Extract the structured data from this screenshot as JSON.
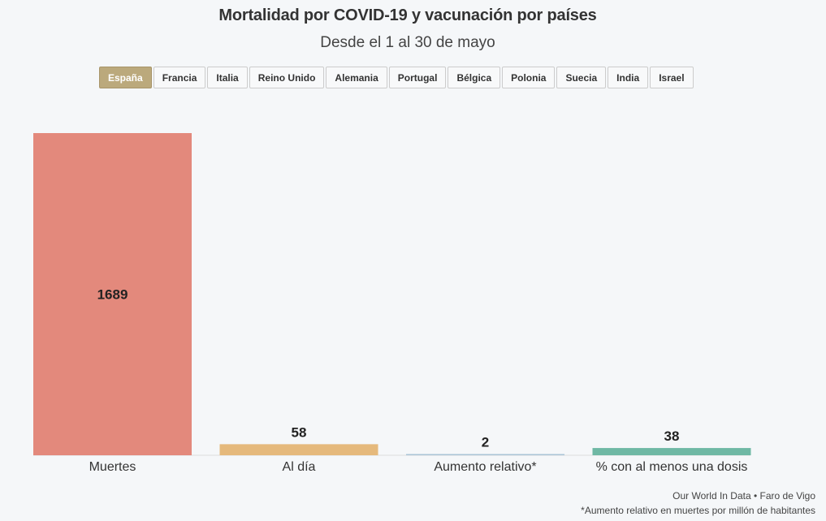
{
  "title": "Mortalidad por COVID-19 y vacunación por países",
  "subtitle": "Desde el 1 al 30 de mayo",
  "tabs": [
    {
      "label": "España",
      "active": true
    },
    {
      "label": "Francia",
      "active": false
    },
    {
      "label": "Italia",
      "active": false
    },
    {
      "label": "Reino Unido",
      "active": false
    },
    {
      "label": "Alemania",
      "active": false
    },
    {
      "label": "Portugal",
      "active": false
    },
    {
      "label": "Bélgica",
      "active": false
    },
    {
      "label": "Polonia",
      "active": false
    },
    {
      "label": "Suecia",
      "active": false
    },
    {
      "label": "India",
      "active": false
    },
    {
      "label": "Israel",
      "active": false
    }
  ],
  "chart_data": {
    "type": "bar",
    "categories": [
      "Muertes",
      "Al día",
      "Aumento relativo*",
      "% con al menos una dosis"
    ],
    "values": [
      1689,
      58,
      2,
      38
    ],
    "colors": [
      "#e3897c",
      "#e5b97c",
      "#a9c4d6",
      "#6fb8a4"
    ],
    "ylim": [
      0,
      1689
    ]
  },
  "footer": {
    "source": "Our World In Data • Faro de Vigo",
    "note": "*Aumento relativo en muertes por millón de habitantes"
  }
}
